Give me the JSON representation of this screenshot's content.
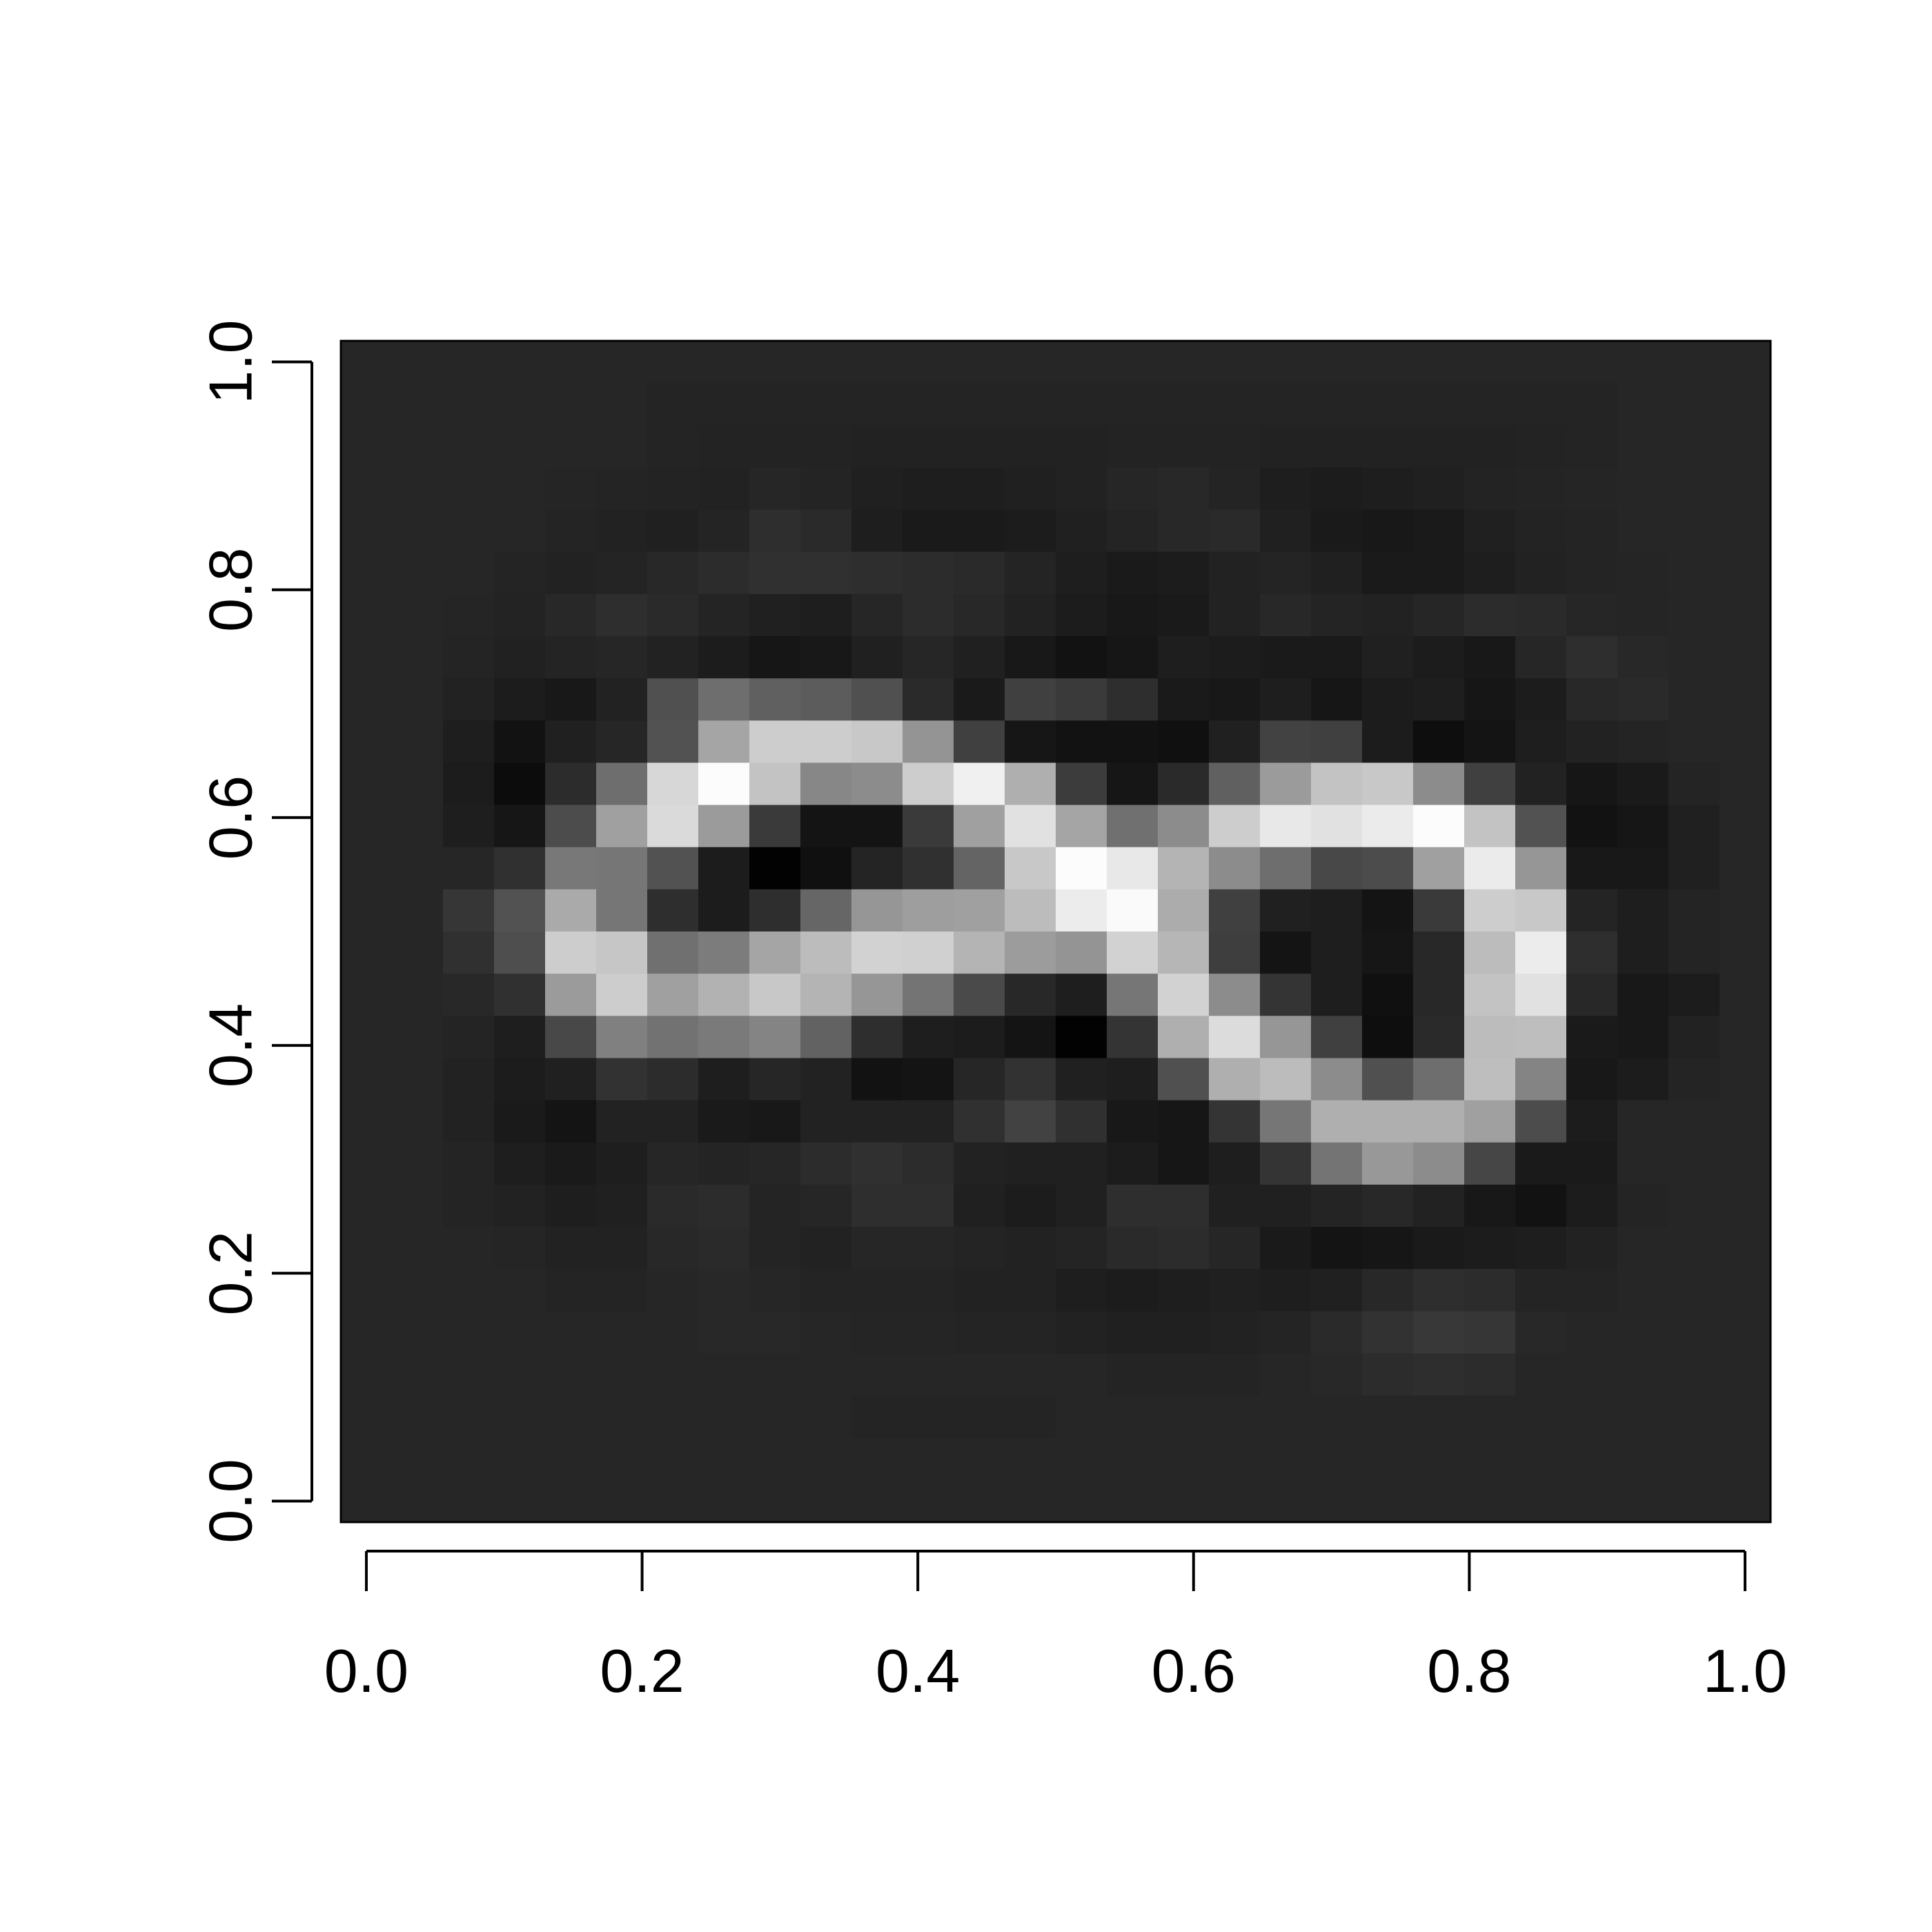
{
  "chart_data": {
    "type": "heatmap",
    "title": "",
    "xlabel": "",
    "ylabel": "",
    "xlim": [
      -0.0185,
      1.0185
    ],
    "ylim": [
      -0.0185,
      1.0185
    ],
    "x_ticks": [
      0.0,
      0.2,
      0.4,
      0.6,
      0.8,
      1.0
    ],
    "x_tick_labels": [
      "0.0",
      "0.2",
      "0.4",
      "0.6",
      "0.8",
      "1.0"
    ],
    "y_ticks": [
      0.0,
      0.2,
      0.4,
      0.6,
      0.8,
      1.0
    ],
    "y_tick_labels": [
      "0.0",
      "0.2",
      "0.4",
      "0.6",
      "0.8",
      "1.0"
    ],
    "grid": false,
    "legend": "none",
    "colormap": "grayscale",
    "value_range": [
      0,
      255
    ],
    "rows": 28,
    "cols": 28,
    "row_order": "top-to-bottom",
    "values": [
      [
        38,
        38,
        38,
        38,
        38,
        38,
        38,
        38,
        38,
        38,
        38,
        38,
        38,
        38,
        38,
        38,
        38,
        38,
        38,
        38,
        38,
        38,
        38,
        38,
        38,
        38,
        38,
        38
      ],
      [
        38,
        38,
        38,
        38,
        38,
        38,
        36,
        36,
        36,
        36,
        36,
        36,
        36,
        36,
        36,
        36,
        36,
        36,
        36,
        36,
        36,
        36,
        36,
        36,
        36,
        38,
        38,
        38
      ],
      [
        38,
        38,
        38,
        38,
        38,
        38,
        36,
        35,
        35,
        35,
        34,
        34,
        34,
        34,
        34,
        35,
        35,
        35,
        34,
        34,
        34,
        34,
        34,
        35,
        36,
        38,
        38,
        38
      ],
      [
        38,
        38,
        38,
        38,
        37,
        36,
        35,
        34,
        38,
        36,
        32,
        30,
        30,
        32,
        34,
        38,
        40,
        36,
        30,
        28,
        30,
        32,
        35,
        36,
        37,
        38,
        38,
        38
      ],
      [
        38,
        38,
        38,
        38,
        36,
        34,
        32,
        36,
        46,
        42,
        30,
        26,
        26,
        28,
        32,
        36,
        40,
        42,
        32,
        26,
        24,
        26,
        32,
        35,
        36,
        38,
        38,
        38
      ],
      [
        38,
        38,
        38,
        36,
        34,
        36,
        40,
        44,
        48,
        48,
        46,
        44,
        42,
        36,
        30,
        26,
        28,
        34,
        36,
        32,
        26,
        26,
        30,
        34,
        36,
        37,
        38,
        38
      ],
      [
        38,
        38,
        37,
        35,
        40,
        46,
        42,
        36,
        32,
        30,
        38,
        44,
        40,
        34,
        28,
        24,
        26,
        34,
        40,
        36,
        34,
        38,
        44,
        42,
        38,
        37,
        38,
        38
      ],
      [
        38,
        38,
        36,
        33,
        36,
        38,
        34,
        28,
        22,
        24,
        32,
        38,
        32,
        24,
        18,
        22,
        30,
        28,
        26,
        26,
        32,
        28,
        24,
        38,
        46,
        40,
        38,
        38
      ],
      [
        38,
        38,
        34,
        28,
        24,
        34,
        80,
        110,
        96,
        92,
        80,
        42,
        26,
        64,
        58,
        46,
        26,
        24,
        30,
        22,
        28,
        30,
        22,
        28,
        40,
        42,
        38,
        38
      ],
      [
        38,
        38,
        30,
        18,
        32,
        38,
        82,
        165,
        205,
        205,
        200,
        148,
        64,
        22,
        18,
        18,
        16,
        32,
        66,
        64,
        28,
        14,
        20,
        30,
        34,
        36,
        38,
        38
      ],
      [
        38,
        38,
        28,
        12,
        44,
        110,
        215,
        252,
        195,
        135,
        140,
        205,
        240,
        175,
        60,
        22,
        42,
        96,
        155,
        195,
        200,
        140,
        64,
        34,
        22,
        26,
        36,
        38
      ],
      [
        38,
        38,
        30,
        22,
        76,
        160,
        218,
        155,
        58,
        20,
        20,
        58,
        160,
        225,
        165,
        112,
        140,
        205,
        232,
        225,
        235,
        252,
        195,
        82,
        18,
        22,
        32,
        38
      ],
      [
        38,
        38,
        38,
        48,
        120,
        118,
        82,
        28,
        2,
        16,
        36,
        48,
        100,
        200,
        252,
        232,
        180,
        140,
        110,
        72,
        76,
        160,
        235,
        150,
        24,
        24,
        32,
        38
      ],
      [
        38,
        38,
        54,
        82,
        170,
        118,
        46,
        28,
        46,
        102,
        150,
        158,
        160,
        188,
        236,
        250,
        172,
        64,
        32,
        30,
        20,
        58,
        205,
        200,
        36,
        30,
        36,
        38
      ],
      [
        38,
        38,
        48,
        78,
        205,
        198,
        112,
        124,
        165,
        188,
        210,
        208,
        180,
        156,
        148,
        210,
        182,
        62,
        20,
        30,
        22,
        40,
        188,
        236,
        46,
        30,
        36,
        38
      ],
      [
        38,
        38,
        40,
        48,
        155,
        205,
        160,
        178,
        200,
        180,
        150,
        116,
        74,
        40,
        30,
        118,
        210,
        140,
        52,
        30,
        16,
        40,
        195,
        225,
        40,
        24,
        28,
        38
      ],
      [
        38,
        38,
        36,
        30,
        72,
        128,
        114,
        122,
        132,
        98,
        46,
        30,
        28,
        20,
        2,
        52,
        175,
        220,
        150,
        64,
        14,
        42,
        188,
        190,
        26,
        24,
        34,
        38
      ],
      [
        38,
        38,
        34,
        28,
        32,
        50,
        44,
        30,
        38,
        34,
        18,
        20,
        38,
        50,
        32,
        30,
        80,
        175,
        188,
        140,
        80,
        110,
        190,
        132,
        24,
        28,
        36,
        38
      ],
      [
        38,
        38,
        34,
        26,
        20,
        34,
        34,
        26,
        24,
        34,
        34,
        34,
        48,
        66,
        48,
        24,
        22,
        52,
        118,
        175,
        175,
        175,
        160,
        76,
        28,
        38,
        38,
        38
      ],
      [
        38,
        38,
        36,
        30,
        26,
        30,
        38,
        36,
        38,
        44,
        48,
        44,
        34,
        32,
        32,
        28,
        22,
        30,
        52,
        116,
        152,
        140,
        70,
        26,
        26,
        38,
        38,
        38
      ],
      [
        38,
        38,
        36,
        34,
        30,
        32,
        42,
        44,
        36,
        38,
        46,
        46,
        32,
        28,
        32,
        46,
        46,
        32,
        32,
        36,
        40,
        34,
        24,
        18,
        28,
        36,
        38,
        38
      ],
      [
        38,
        38,
        38,
        37,
        34,
        34,
        40,
        42,
        36,
        34,
        38,
        38,
        36,
        34,
        36,
        42,
        44,
        38,
        26,
        20,
        22,
        26,
        28,
        30,
        34,
        38,
        38,
        38
      ],
      [
        38,
        38,
        38,
        38,
        36,
        36,
        38,
        40,
        38,
        36,
        36,
        36,
        34,
        34,
        30,
        28,
        30,
        32,
        30,
        32,
        40,
        46,
        44,
        36,
        36,
        38,
        38,
        38
      ],
      [
        38,
        38,
        38,
        38,
        38,
        38,
        38,
        40,
        40,
        38,
        37,
        37,
        36,
        36,
        34,
        32,
        32,
        34,
        36,
        42,
        50,
        56,
        54,
        40,
        38,
        38,
        38,
        38
      ],
      [
        38,
        38,
        38,
        38,
        38,
        38,
        38,
        38,
        38,
        38,
        38,
        38,
        38,
        38,
        38,
        36,
        36,
        36,
        38,
        40,
        44,
        46,
        44,
        38,
        38,
        38,
        38,
        38
      ],
      [
        38,
        38,
        38,
        38,
        38,
        38,
        38,
        38,
        38,
        38,
        36,
        36,
        36,
        36,
        38,
        38,
        38,
        38,
        38,
        38,
        38,
        38,
        38,
        38,
        38,
        38,
        38,
        38
      ],
      [
        38,
        38,
        38,
        38,
        38,
        38,
        38,
        38,
        38,
        38,
        38,
        38,
        38,
        38,
        38,
        38,
        38,
        38,
        38,
        38,
        38,
        38,
        38,
        38,
        38,
        38,
        38,
        38
      ],
      [
        38,
        38,
        38,
        38,
        38,
        38,
        38,
        38,
        38,
        38,
        38,
        38,
        38,
        38,
        38,
        38,
        38,
        38,
        38,
        38,
        38,
        38,
        38,
        38,
        38,
        38,
        38,
        38
      ]
    ]
  }
}
